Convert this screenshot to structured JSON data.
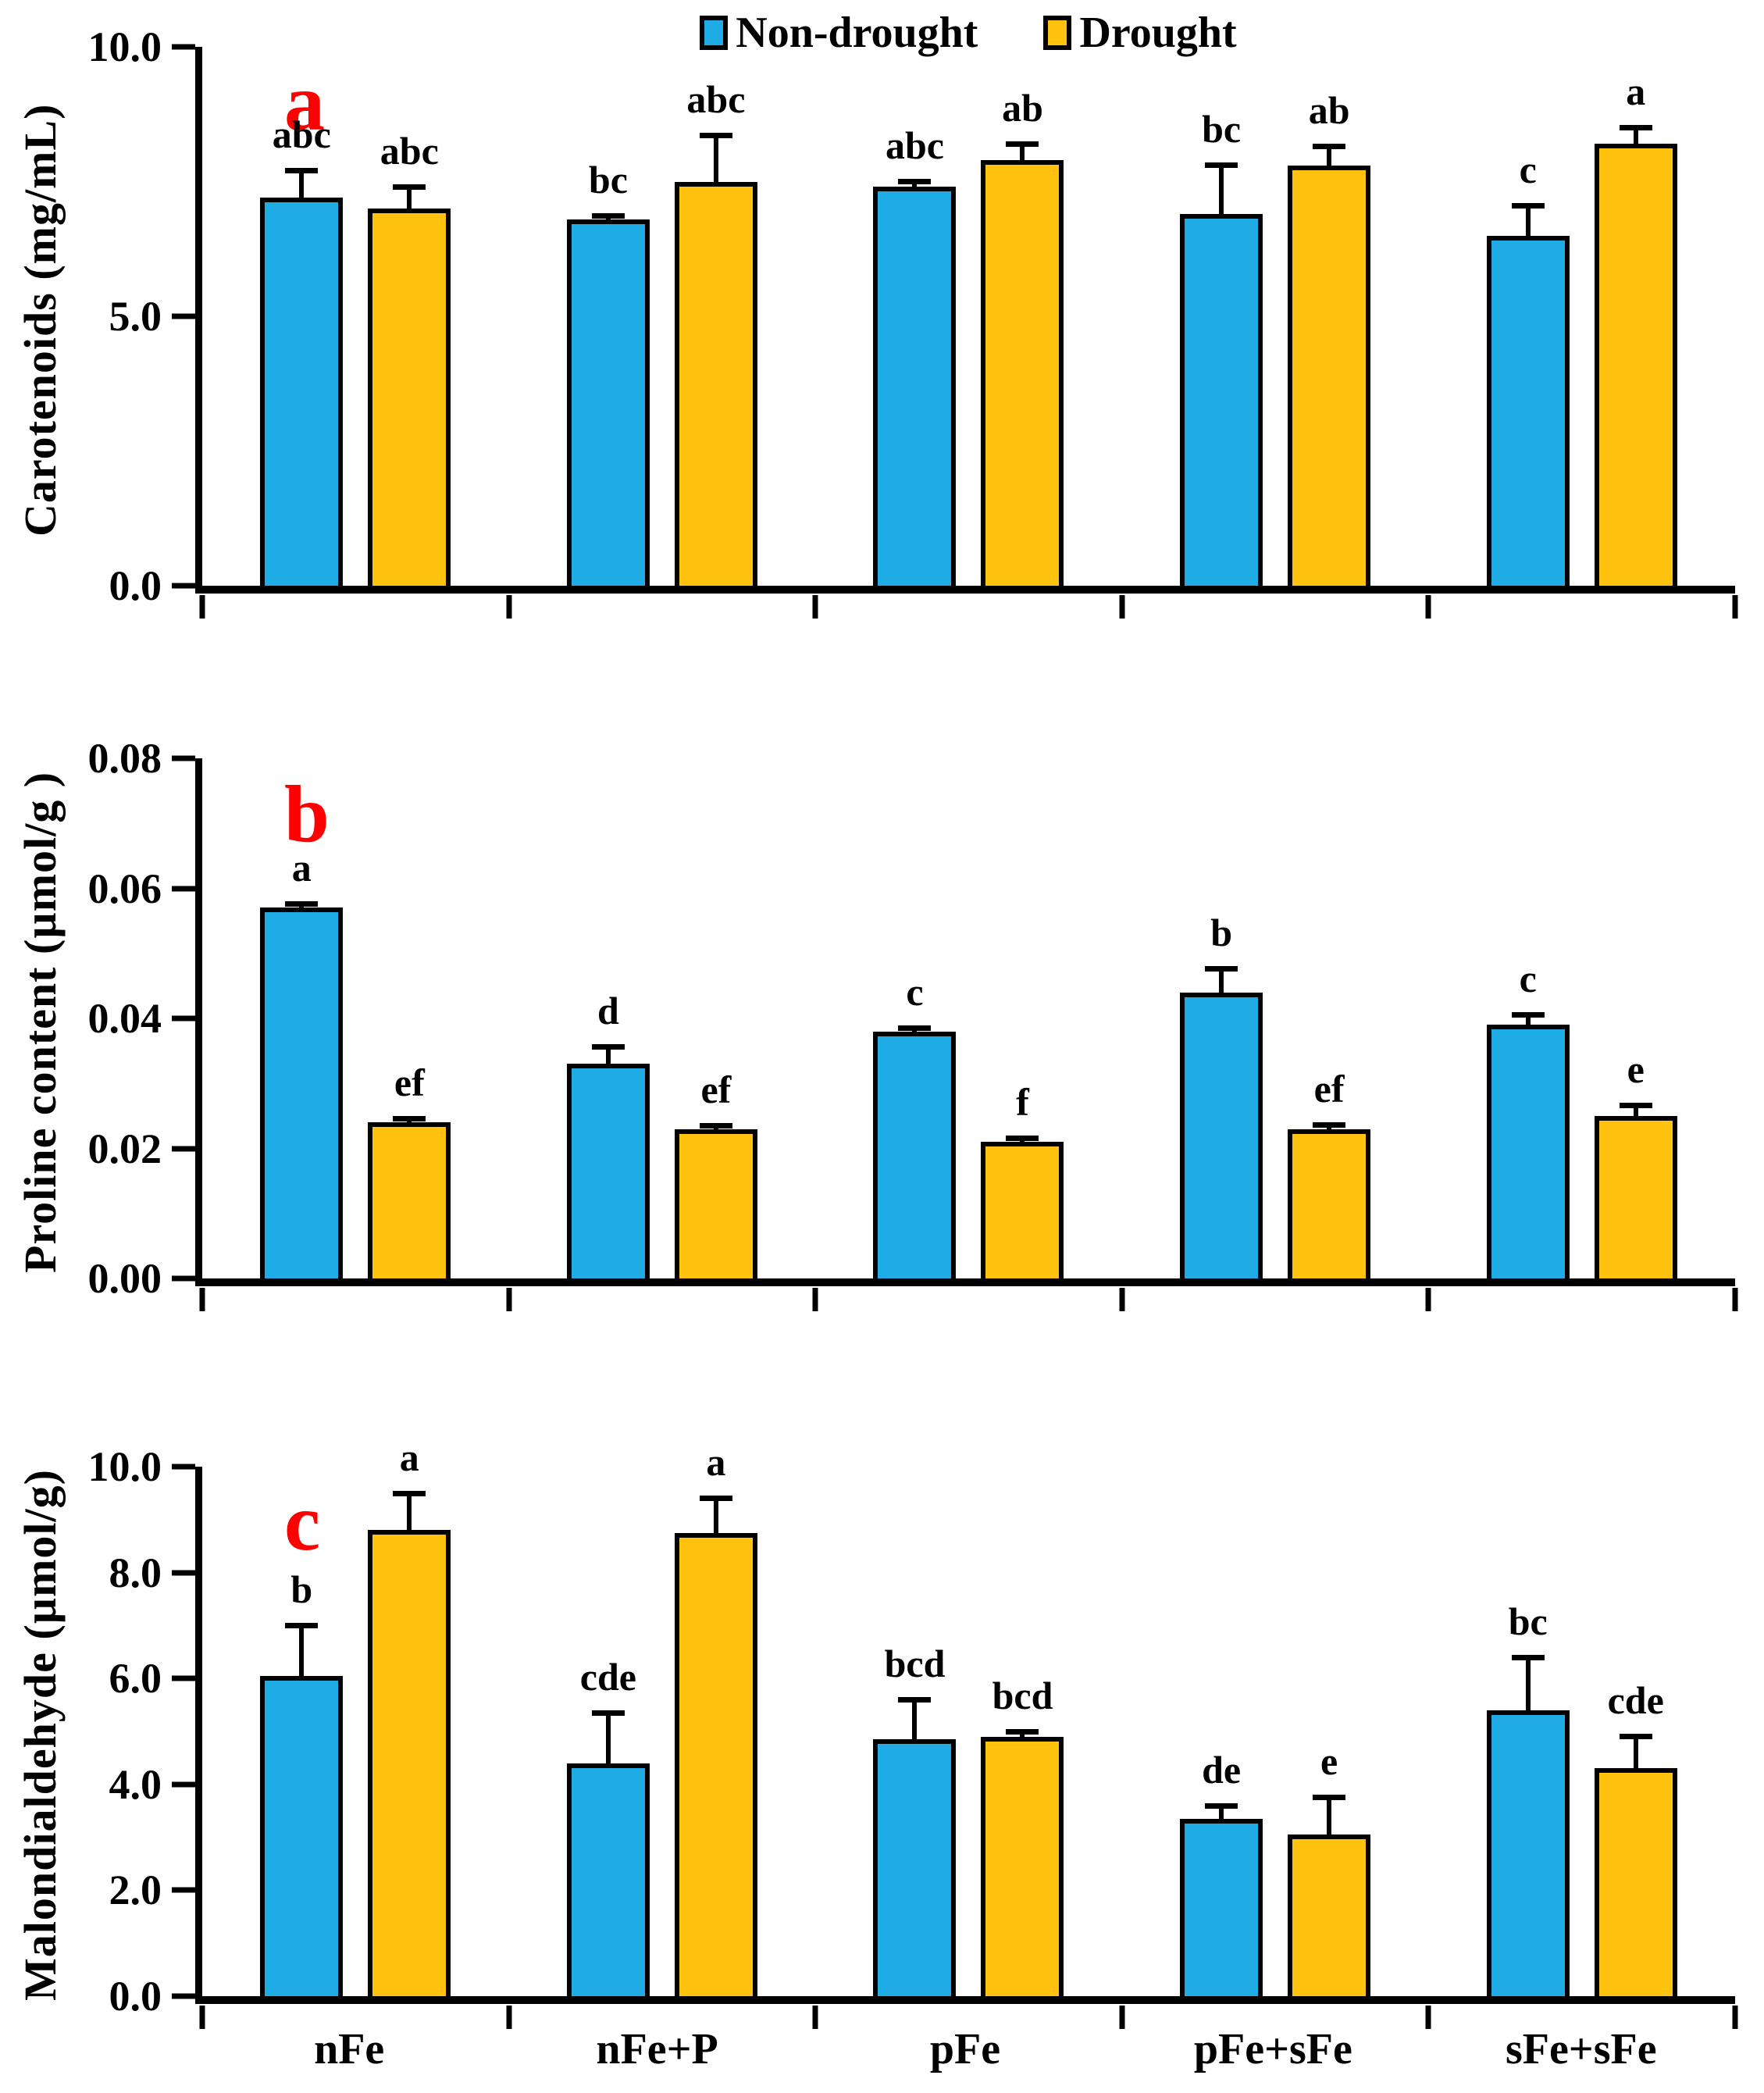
{
  "legend": {
    "items": [
      {
        "label": "Non-drought",
        "color": "#1FACE4"
      },
      {
        "label": "Drought",
        "color": "#FFC20E"
      }
    ]
  },
  "colors": {
    "non_drought": "#1FACE4",
    "drought": "#FFC20E",
    "bar_border": "#000000",
    "axis": "#000000",
    "panel_letter": "#FF0000"
  },
  "chart_data": [
    {
      "type": "bar",
      "panel_label": "a",
      "ylabel": "Carotenoids (mg/mL)",
      "xlabel": "",
      "ylim": [
        0,
        10
      ],
      "grid": false,
      "legend_position": "top-center",
      "yticks": [
        {
          "value": 10,
          "label": "10.0"
        },
        {
          "value": 5,
          "label": "5.0"
        },
        {
          "value": 0,
          "label": "0.0"
        }
      ],
      "categories": [
        "nFe",
        "nFe+P",
        "pFe",
        "pFe+sFe",
        "sFe+sFe"
      ],
      "series": [
        {
          "name": "Non-drought",
          "color": "#1FACE4",
          "values": [
            7.2,
            6.8,
            7.4,
            6.9,
            6.5
          ],
          "errors": [
            0.55,
            0.1,
            0.15,
            0.95,
            0.6
          ],
          "letters": [
            "abc",
            "bc",
            "abc",
            "bc",
            "c"
          ]
        },
        {
          "name": "Drought",
          "color": "#FFC20E",
          "values": [
            7.0,
            7.5,
            7.9,
            7.8,
            8.2
          ],
          "errors": [
            0.45,
            0.9,
            0.35,
            0.4,
            0.35
          ],
          "letters": [
            "abc",
            "abc",
            "ab",
            "ab",
            "a"
          ]
        }
      ]
    },
    {
      "type": "bar",
      "panel_label": "b",
      "ylabel": "Proline content (µmol/g )",
      "xlabel": "",
      "ylim": [
        0,
        0.08
      ],
      "grid": false,
      "yticks": [
        {
          "value": 0.08,
          "label": "0.08"
        },
        {
          "value": 0.06,
          "label": "0.06"
        },
        {
          "value": 0.04,
          "label": "0.04"
        },
        {
          "value": 0.02,
          "label": "0.02"
        },
        {
          "value": 0,
          "label": "0.00"
        }
      ],
      "categories": [
        "nFe",
        "nFe+P",
        "pFe",
        "pFe+sFe",
        "sFe+sFe"
      ],
      "series": [
        {
          "name": "Non-drought",
          "color": "#1FACE4",
          "values": [
            0.057,
            0.033,
            0.038,
            0.044,
            0.039
          ],
          "errors": [
            0.001,
            0.003,
            0.0005,
            0.004,
            0.002
          ],
          "letters": [
            "a",
            "d",
            "c",
            "b",
            "c"
          ]
        },
        {
          "name": "Drought",
          "color": "#FFC20E",
          "values": [
            0.024,
            0.023,
            0.021,
            0.023,
            0.025
          ],
          "errors": [
            0.0005,
            0.0005,
            0.001,
            0.001,
            0.002
          ],
          "letters": [
            "ef",
            "ef",
            "f",
            "ef",
            "e"
          ]
        }
      ]
    },
    {
      "type": "bar",
      "panel_label": "c",
      "ylabel": "Malondialdehyde (µmol/g)",
      "xlabel": "",
      "ylim": [
        0,
        10
      ],
      "grid": false,
      "yticks": [
        {
          "value": 10,
          "label": "10.0"
        },
        {
          "value": 8,
          "label": "8.0"
        },
        {
          "value": 6,
          "label": "6.0"
        },
        {
          "value": 4,
          "label": "4.0"
        },
        {
          "value": 2,
          "label": "2.0"
        },
        {
          "value": 0,
          "label": "0.0"
        }
      ],
      "categories": [
        "nFe",
        "nFe+P",
        "pFe",
        "pFe+sFe",
        "sFe+sFe"
      ],
      "series": [
        {
          "name": "Non-drought",
          "color": "#1FACE4",
          "values": [
            6.05,
            4.4,
            4.85,
            3.35,
            5.4
          ],
          "errors": [
            1.0,
            1.0,
            0.8,
            0.3,
            1.05
          ],
          "letters": [
            "b",
            "cde",
            "bcd",
            "de",
            "bc"
          ]
        },
        {
          "name": "Drought",
          "color": "#FFC20E",
          "values": [
            8.8,
            8.75,
            4.9,
            3.05,
            4.3
          ],
          "errors": [
            0.75,
            0.7,
            0.15,
            0.75,
            0.65
          ],
          "letters": [
            "a",
            "a",
            "bcd",
            "e",
            "cde"
          ]
        }
      ]
    }
  ]
}
